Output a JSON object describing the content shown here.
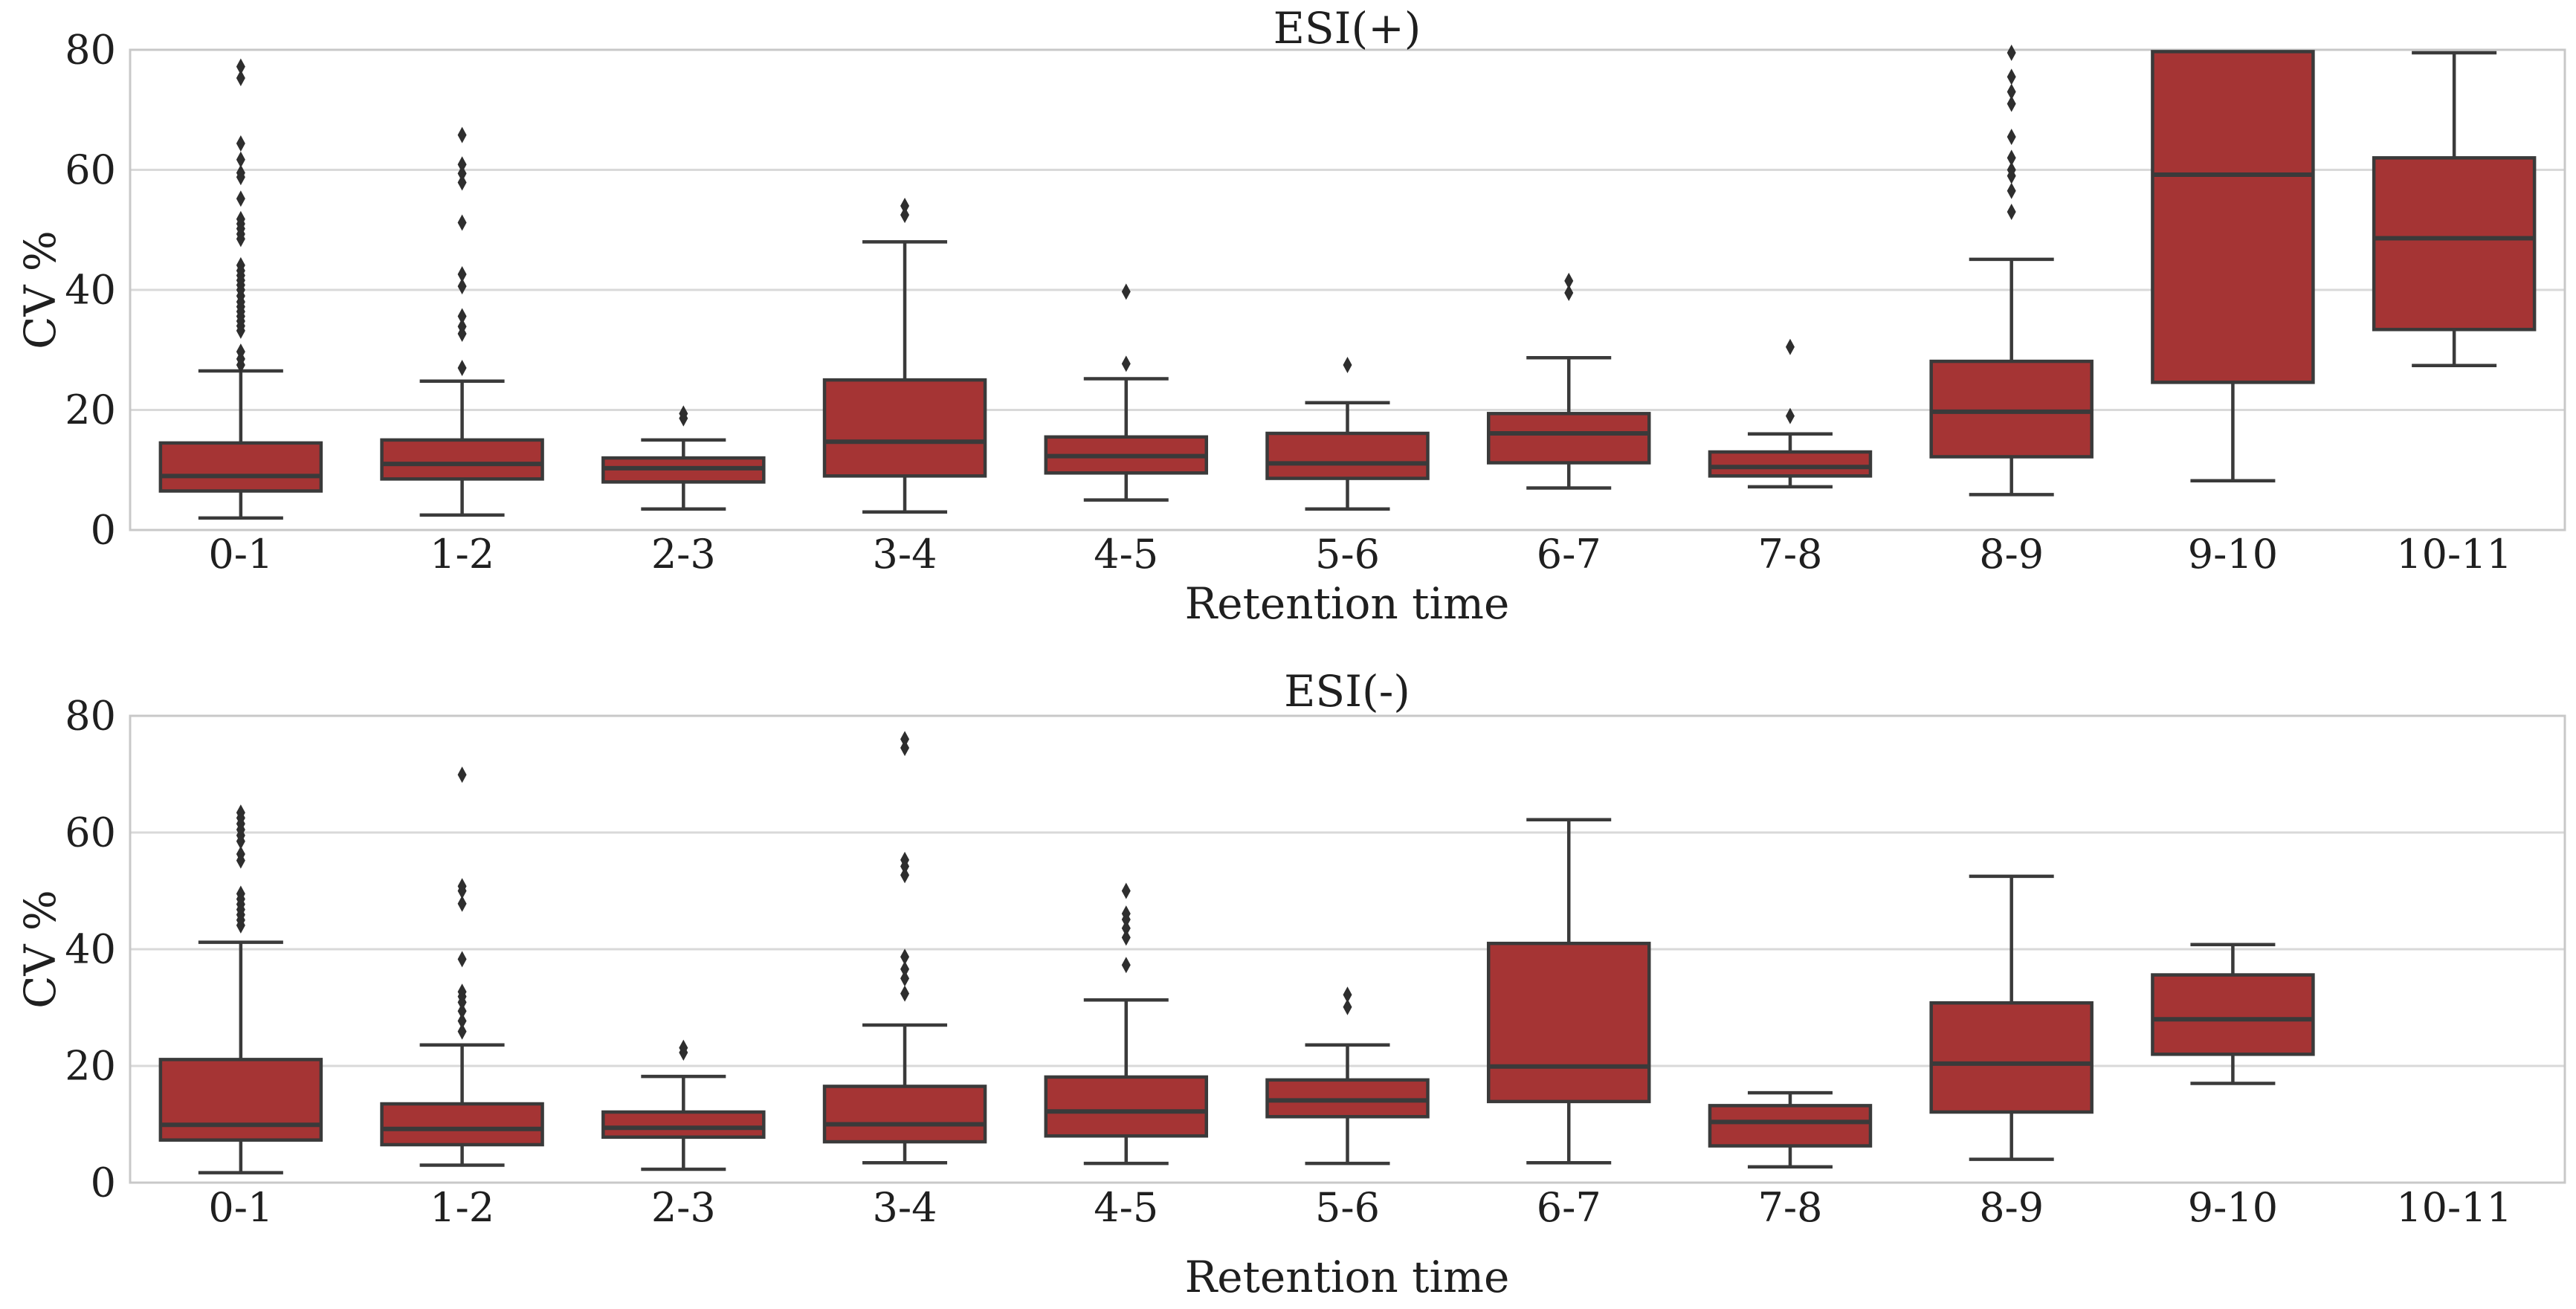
{
  "figure": {
    "background": "#ffffff",
    "text_color": "#1f1f1f"
  },
  "colors": {
    "box_fill": "#a53434",
    "box_edge": "#3a3a3a",
    "median": "#3a3a3a",
    "whisker": "#3a3a3a",
    "outlier": "#2e2e2e",
    "gridline": "#d9d9d9",
    "spine": "#c8c8c8"
  },
  "chart_data": [
    {
      "type": "box",
      "title": "ESI(+)",
      "xlabel": "Retention time",
      "ylabel": "CV %",
      "ylim": [
        0,
        80
      ],
      "yticks": [
        0,
        20,
        40,
        60,
        80
      ],
      "grid": true,
      "legend": false,
      "categories": [
        "0-1",
        "1-2",
        "2-3",
        "3-4",
        "4-5",
        "5-6",
        "6-7",
        "7-8",
        "8-9",
        "9-10",
        "10-11"
      ],
      "boxes": [
        {
          "category": "0-1",
          "whislo": 2,
          "q1": 6.5,
          "med": 9,
          "q3": 14.5,
          "whishi": 26.5,
          "outliers": [
            27.5,
            28.5,
            29.7,
            33.2,
            34,
            34.8,
            35.6,
            36.4,
            37.2,
            38,
            39,
            40,
            40.8,
            41.6,
            42.4,
            43.2,
            44.1,
            48.5,
            49.3,
            50.2,
            51,
            51.8,
            55.2,
            58.8,
            59.5,
            61.7,
            64.4,
            75.3,
            77.2
          ]
        },
        {
          "category": "1-2",
          "whislo": 2.5,
          "q1": 8.5,
          "med": 11,
          "q3": 15,
          "whishi": 24.8,
          "outliers": [
            27,
            32.7,
            33.9,
            35.6,
            40.6,
            42.6,
            51.2,
            57.9,
            59.4,
            60.9,
            65.8
          ]
        },
        {
          "category": "2-3",
          "whislo": 3.5,
          "q1": 8,
          "med": 10.3,
          "q3": 12,
          "whishi": 15,
          "outliers": [
            18.6,
            19.4
          ]
        },
        {
          "category": "3-4",
          "whislo": 3,
          "q1": 9,
          "med": 14.7,
          "q3": 25,
          "whishi": 48,
          "outliers": [
            52.5,
            54
          ]
        },
        {
          "category": "4-5",
          "whislo": 5,
          "q1": 9.5,
          "med": 12.3,
          "q3": 15.5,
          "whishi": 25.2,
          "outliers": [
            27.7,
            39.7
          ]
        },
        {
          "category": "5-6",
          "whislo": 3.5,
          "q1": 8.6,
          "med": 11.1,
          "q3": 16.1,
          "whishi": 21.2,
          "outliers": [
            27.5
          ]
        },
        {
          "category": "6-7",
          "whislo": 7,
          "q1": 11.2,
          "med": 16.1,
          "q3": 19.4,
          "whishi": 28.7,
          "outliers": [
            39.5,
            41.5
          ]
        },
        {
          "category": "7-8",
          "whislo": 7.2,
          "q1": 9,
          "med": 10.5,
          "q3": 13,
          "whishi": 16,
          "outliers": [
            19,
            30.5
          ]
        },
        {
          "category": "8-9",
          "whislo": 5.9,
          "q1": 12.2,
          "med": 19.7,
          "q3": 28.1,
          "whishi": 45.1,
          "outliers": [
            53,
            56.5,
            59,
            60,
            62,
            65.5,
            71,
            73,
            75.5,
            79.5
          ]
        },
        {
          "category": "9-10",
          "whislo": 8.2,
          "q1": 24.6,
          "med": 59.2,
          "q3": 79.7,
          "whishi": null,
          "outliers": []
        },
        {
          "category": "10-11",
          "whislo": 27.4,
          "q1": 33.4,
          "med": 48.6,
          "q3": 62,
          "whishi": 79.5,
          "outliers": []
        }
      ]
    },
    {
      "type": "box",
      "title": "ESI(-)",
      "xlabel": "Retention time",
      "ylabel": "CV %",
      "ylim": [
        0,
        80
      ],
      "yticks": [
        0,
        20,
        40,
        60,
        80
      ],
      "grid": true,
      "legend": false,
      "categories": [
        "0-1",
        "1-2",
        "2-3",
        "3-4",
        "4-5",
        "5-6",
        "6-7",
        "7-8",
        "8-9",
        "9-10",
        "10-11"
      ],
      "boxes": [
        {
          "category": "0-1",
          "whislo": 1.7,
          "q1": 7.3,
          "med": 9.9,
          "q3": 21.1,
          "whishi": 41.2,
          "outliers": [
            44.1,
            45,
            45.9,
            46.8,
            47.7,
            48.6,
            49.5,
            55.2,
            56.3,
            58.5,
            59.5,
            60.5,
            61.5,
            62.5,
            63.4
          ]
        },
        {
          "category": "1-2",
          "whislo": 3,
          "q1": 6.5,
          "med": 9.2,
          "q3": 13.5,
          "whishi": 23.6,
          "outliers": [
            25.9,
            27.7,
            29.4,
            30.9,
            31.9,
            32.7,
            38.3,
            47.8,
            50,
            50.8,
            69.9
          ]
        },
        {
          "category": "2-3",
          "whislo": 2.3,
          "q1": 7.8,
          "med": 9.4,
          "q3": 12.1,
          "whishi": 18.2,
          "outliers": [
            22.3,
            23.1
          ]
        },
        {
          "category": "3-4",
          "whislo": 3.4,
          "q1": 7,
          "med": 10,
          "q3": 16.5,
          "whishi": 27,
          "outliers": [
            32.4,
            35,
            36.6,
            38.7,
            52.7,
            54.2,
            55.3,
            74.5,
            76
          ]
        },
        {
          "category": "4-5",
          "whislo": 3.3,
          "q1": 8,
          "med": 12.2,
          "q3": 18.1,
          "whishi": 31.3,
          "outliers": [
            37.3,
            42,
            43.6,
            45.1,
            46.1,
            50
          ]
        },
        {
          "category": "5-6",
          "whislo": 3.3,
          "q1": 11.3,
          "med": 14.1,
          "q3": 17.6,
          "whishi": 23.6,
          "outliers": [
            30.1,
            32.2
          ]
        },
        {
          "category": "6-7",
          "whislo": 3.4,
          "q1": 13.9,
          "med": 19.9,
          "q3": 41,
          "whishi": 62.2,
          "outliers": []
        },
        {
          "category": "7-8",
          "whislo": 2.7,
          "q1": 6.3,
          "med": 10.4,
          "q3": 13.2,
          "whishi": 15.4,
          "outliers": []
        },
        {
          "category": "8-9",
          "whislo": 4,
          "q1": 12.1,
          "med": 20.4,
          "q3": 30.8,
          "whishi": 52.5,
          "outliers": []
        },
        {
          "category": "9-10",
          "whislo": 17,
          "q1": 22,
          "med": 28,
          "q3": 35.6,
          "whishi": 40.8,
          "outliers": []
        },
        {
          "category": "10-11",
          "whislo": null,
          "q1": null,
          "med": null,
          "q3": null,
          "whishi": null,
          "outliers": []
        }
      ]
    }
  ]
}
